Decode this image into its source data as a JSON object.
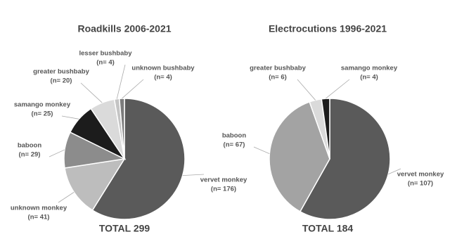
{
  "chart_data": [
    {
      "type": "pie",
      "title": "Roadkills 2006-2021",
      "categories": [
        "vervet monkey",
        "unknown monkey",
        "baboon",
        "samango monkey",
        "greater bushbaby",
        "lesser bushbaby",
        "unknown bushbaby"
      ],
      "values": [
        176,
        41,
        29,
        25,
        20,
        4,
        4
      ],
      "value_labels": [
        "(n= 176)",
        "(n= 41)",
        "(n= 29)",
        "(n= 25)",
        "(n= 20)",
        "(n= 4)",
        "(n= 4)"
      ],
      "colors": [
        "#5a5a5a",
        "#bdbdbd",
        "#8c8c8c",
        "#1c1c1c",
        "#dadada",
        "#c4c4c4",
        "#7c7c7c"
      ],
      "annotation": "TOTAL 299"
    },
    {
      "type": "pie",
      "title": "Electrocutions 1996-2021",
      "categories": [
        "vervet monkey",
        "baboon",
        "greater bushbaby",
        "samango monkey"
      ],
      "values": [
        107,
        67,
        6,
        4
      ],
      "value_labels": [
        "(n= 107)",
        "(n= 67)",
        "(n= 6)",
        "(n= 4)"
      ],
      "colors": [
        "#5a5a5a",
        "#a3a3a3",
        "#dadada",
        "#1c1c1c"
      ],
      "annotation": "TOTAL 184"
    }
  ]
}
